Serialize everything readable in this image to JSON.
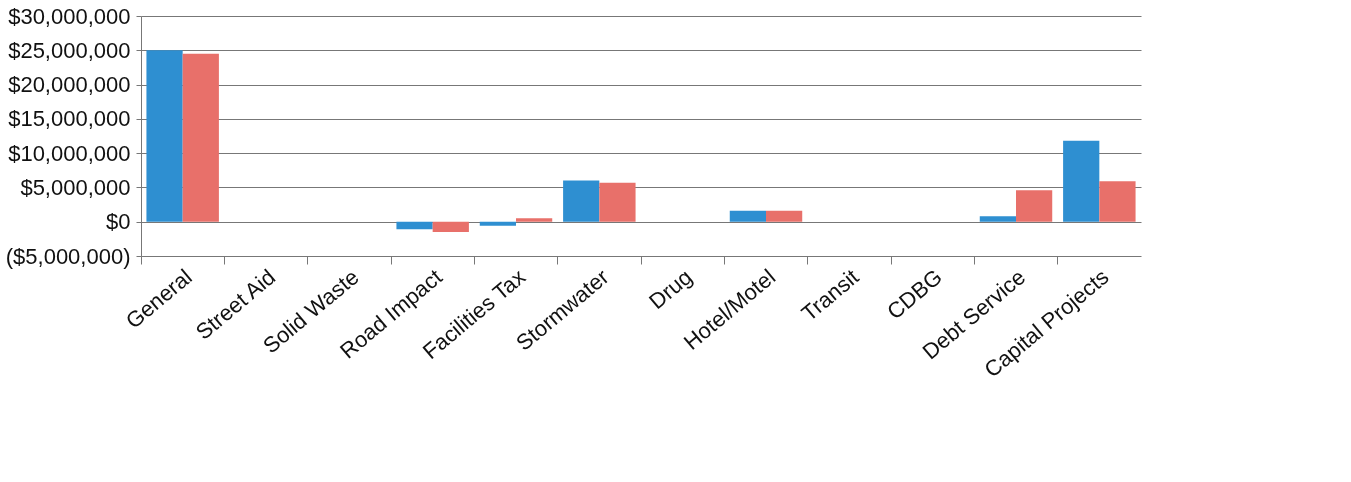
{
  "chart_data": {
    "type": "bar",
    "categories": [
      "General",
      "Street Aid",
      "Solid Waste",
      "Road Impact",
      "Facilities Tax",
      "Stormwater",
      "Drug",
      "Hotel/Motel",
      "Transit",
      "CDBG",
      "Debt Service",
      "Capital Projects"
    ],
    "series": [
      {
        "color": "#2e8fd1",
        "values": [
          25000000,
          0,
          0,
          -1100000,
          -600000,
          6000000,
          0,
          1600000,
          0,
          0,
          800000,
          11800000
        ]
      },
      {
        "color": "#e8706a",
        "values": [
          24500000,
          0,
          0,
          -1500000,
          500000,
          5700000,
          0,
          1600000,
          0,
          0,
          4600000,
          5900000
        ]
      }
    ],
    "ylim": [
      -5000000,
      30000000
    ],
    "yticks": [
      {
        "value": -5000000,
        "label": "($5,000,000)"
      },
      {
        "value": 0,
        "label": "$0"
      },
      {
        "value": 5000000,
        "label": "$5,000,000"
      },
      {
        "value": 10000000,
        "label": "$10,000,000"
      },
      {
        "value": 15000000,
        "label": "$15,000,000"
      },
      {
        "value": 20000000,
        "label": "$20,000,000"
      },
      {
        "value": 25000000,
        "label": "$25,000,000"
      },
      {
        "value": 30000000,
        "label": "$30,000,000"
      }
    ],
    "grid": "y",
    "legend": false
  }
}
